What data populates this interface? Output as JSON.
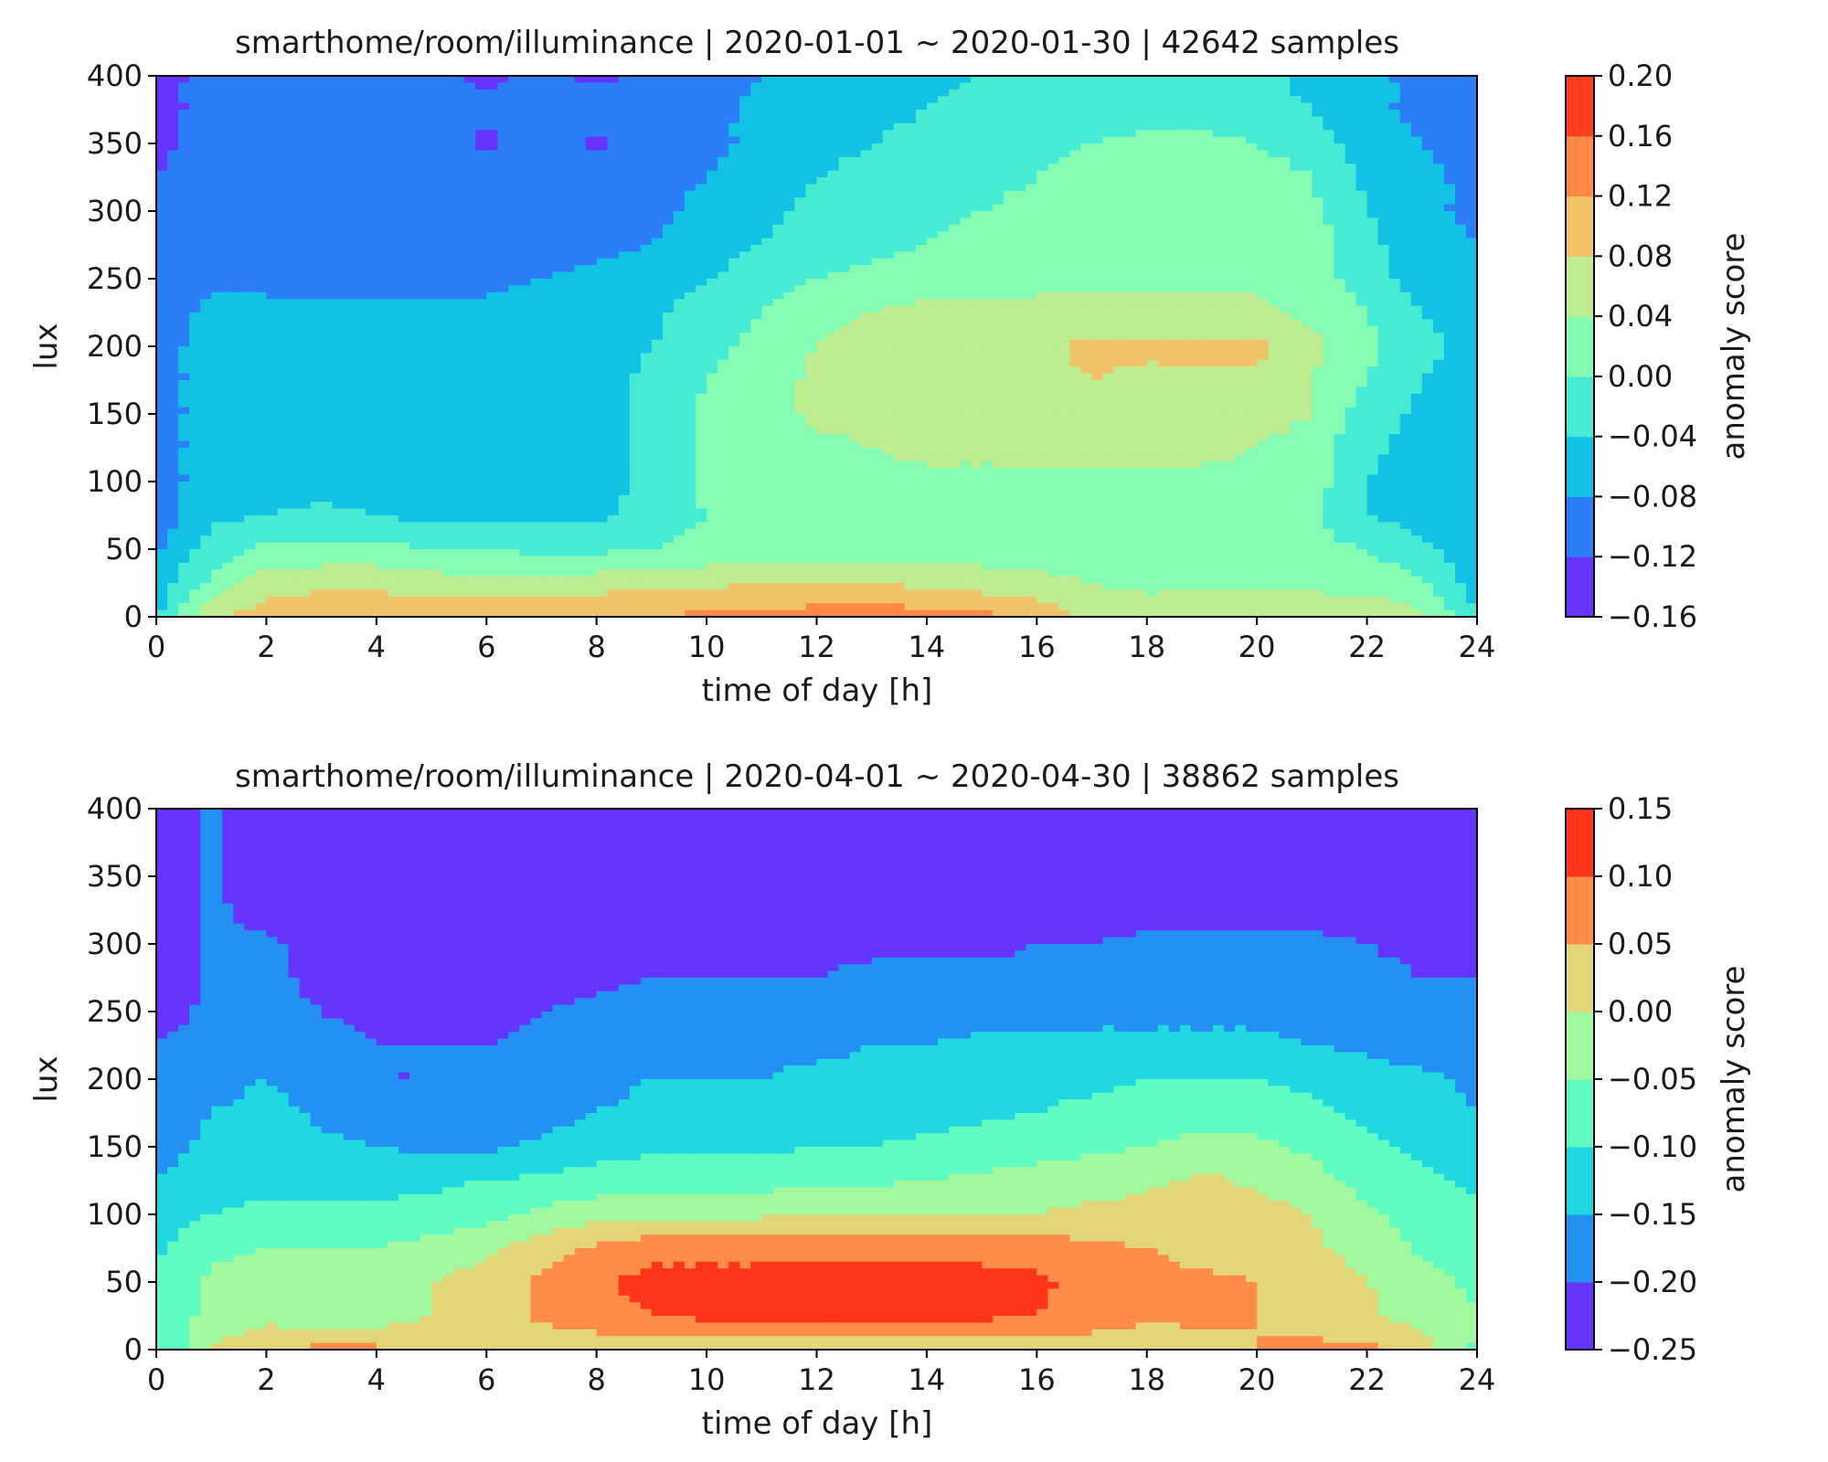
{
  "chart_data": [
    {
      "type": "heatmap",
      "subtype": "filled-contour",
      "title": "smarthome/room/illuminance | 2020-01-01 ~ 2020-01-30 | 42642 samples",
      "xlabel": "time of day [h]",
      "ylabel": "lux",
      "xlim": [
        0,
        24
      ],
      "ylim": [
        0,
        400
      ],
      "x_ticks": [
        0,
        2,
        4,
        6,
        8,
        10,
        12,
        14,
        16,
        18,
        20,
        22,
        24
      ],
      "y_ticks": [
        0,
        50,
        100,
        150,
        200,
        250,
        300,
        350,
        400
      ],
      "colorbar": {
        "label": "anomaly score",
        "levels": [
          -0.16,
          -0.12,
          -0.08,
          -0.04,
          0.0,
          0.04,
          0.08,
          0.12,
          0.16,
          0.2
        ],
        "tick_labels": [
          "−0.16",
          "−0.12",
          "−0.08",
          "−0.04",
          "0.00",
          "0.04",
          "0.08",
          "0.12",
          "0.16",
          "0.20"
        ],
        "colors": [
          "#6534fe",
          "#2c7ef7",
          "#12c2e5",
          "#47ebd3",
          "#84fcb4",
          "#bfeb91",
          "#f2c46a",
          "#ff8947",
          "#ff3d1f"
        ]
      },
      "grid": false,
      "x": [
        0,
        1,
        2,
        3,
        4,
        5,
        6,
        7,
        8,
        9,
        10,
        11,
        12,
        13,
        14,
        15,
        16,
        17,
        18,
        19,
        20,
        21,
        22,
        23,
        24
      ],
      "y": [
        0,
        25,
        50,
        75,
        100,
        125,
        150,
        175,
        200,
        225,
        250,
        275,
        300,
        325,
        350,
        375,
        400
      ],
      "z": [
        [
          -0.05,
          0.08,
          0.1,
          0.11,
          0.11,
          0.11,
          0.12,
          0.12,
          0.12,
          0.12,
          0.13,
          0.13,
          0.14,
          0.14,
          0.14,
          0.13,
          0.11,
          0.07,
          0.06,
          0.08,
          0.08,
          0.07,
          0.07,
          0.05,
          -0.04
        ],
        [
          -0.06,
          0.01,
          0.06,
          0.07,
          0.07,
          0.06,
          0.05,
          0.05,
          0.06,
          0.07,
          0.07,
          0.08,
          0.08,
          0.08,
          0.07,
          0.06,
          0.05,
          0.04,
          0.03,
          0.03,
          0.03,
          0.03,
          0.02,
          0.01,
          -0.06
        ],
        [
          -0.09,
          -0.02,
          0.01,
          0.01,
          0.01,
          0.0,
          0.0,
          -0.01,
          -0.01,
          0.0,
          0.01,
          0.01,
          0.02,
          0.02,
          0.02,
          0.02,
          0.02,
          0.02,
          0.02,
          0.02,
          0.02,
          0.01,
          0.0,
          -0.03,
          -0.07
        ],
        [
          -0.1,
          -0.05,
          -0.04,
          -0.03,
          -0.04,
          -0.05,
          -0.05,
          -0.05,
          -0.05,
          -0.02,
          0.0,
          0.01,
          0.02,
          0.02,
          0.02,
          0.02,
          0.02,
          0.02,
          0.02,
          0.02,
          0.02,
          0.01,
          -0.04,
          -0.06,
          -0.07
        ],
        [
          -0.1,
          -0.06,
          -0.06,
          -0.06,
          -0.06,
          -0.06,
          -0.06,
          -0.06,
          -0.06,
          -0.03,
          0.01,
          0.02,
          0.03,
          0.03,
          0.03,
          0.03,
          0.03,
          0.03,
          0.03,
          0.03,
          0.03,
          0.02,
          -0.04,
          -0.06,
          -0.07
        ],
        [
          -0.1,
          -0.06,
          -0.06,
          -0.06,
          -0.06,
          -0.06,
          -0.06,
          -0.06,
          -0.06,
          -0.03,
          0.01,
          0.02,
          0.03,
          0.04,
          0.05,
          0.05,
          0.05,
          0.05,
          0.05,
          0.05,
          0.04,
          0.02,
          -0.03,
          -0.06,
          -0.07
        ],
        [
          -0.1,
          -0.06,
          -0.06,
          -0.06,
          -0.06,
          -0.06,
          -0.06,
          -0.06,
          -0.06,
          -0.03,
          0.01,
          0.02,
          0.05,
          0.05,
          0.06,
          0.06,
          0.06,
          0.06,
          0.06,
          0.06,
          0.06,
          0.04,
          -0.02,
          -0.05,
          -0.07
        ],
        [
          -0.1,
          -0.06,
          -0.06,
          -0.06,
          -0.06,
          -0.06,
          -0.06,
          -0.06,
          -0.06,
          -0.03,
          0.0,
          0.02,
          0.05,
          0.06,
          0.07,
          0.07,
          0.07,
          0.08,
          0.07,
          0.07,
          0.07,
          0.04,
          0.0,
          -0.04,
          -0.06
        ],
        [
          -0.1,
          -0.06,
          -0.06,
          -0.06,
          -0.06,
          -0.06,
          -0.06,
          -0.06,
          -0.06,
          -0.04,
          -0.01,
          0.01,
          0.04,
          0.06,
          0.07,
          0.07,
          0.07,
          0.09,
          0.09,
          0.09,
          0.09,
          0.05,
          0.01,
          -0.03,
          -0.05
        ],
        [
          -0.1,
          -0.07,
          -0.07,
          -0.07,
          -0.07,
          -0.07,
          -0.07,
          -0.06,
          -0.06,
          -0.05,
          -0.02,
          0.0,
          0.03,
          0.04,
          0.05,
          0.05,
          0.05,
          0.05,
          0.05,
          0.05,
          0.05,
          0.03,
          0.0,
          -0.04,
          -0.06
        ],
        [
          -0.11,
          -0.09,
          -0.09,
          -0.1,
          -0.1,
          -0.1,
          -0.09,
          -0.08,
          -0.07,
          -0.06,
          -0.04,
          -0.02,
          0.0,
          0.01,
          0.02,
          0.02,
          0.03,
          0.03,
          0.03,
          0.03,
          0.03,
          0.02,
          -0.02,
          -0.06,
          -0.08
        ],
        [
          -0.12,
          -0.1,
          -0.1,
          -0.1,
          -0.1,
          -0.1,
          -0.1,
          -0.1,
          -0.09,
          -0.08,
          -0.06,
          -0.04,
          -0.02,
          -0.01,
          0.0,
          0.01,
          0.02,
          0.02,
          0.03,
          0.03,
          0.03,
          0.02,
          -0.03,
          -0.06,
          -0.08
        ],
        [
          -0.12,
          -0.1,
          -0.1,
          -0.1,
          -0.1,
          -0.1,
          -0.1,
          -0.1,
          -0.1,
          -0.09,
          -0.07,
          -0.05,
          -0.03,
          -0.02,
          -0.01,
          0.0,
          0.01,
          0.02,
          0.03,
          0.03,
          0.02,
          0.01,
          -0.04,
          -0.07,
          -0.09
        ],
        [
          -0.12,
          -0.1,
          -0.1,
          -0.1,
          -0.1,
          -0.1,
          -0.1,
          -0.1,
          -0.1,
          -0.09,
          -0.08,
          -0.06,
          -0.04,
          -0.03,
          -0.02,
          -0.01,
          0.0,
          0.02,
          0.03,
          0.03,
          0.02,
          0.0,
          -0.05,
          -0.07,
          -0.09
        ],
        [
          -0.13,
          -0.1,
          -0.1,
          -0.1,
          -0.1,
          -0.1,
          -0.13,
          -0.1,
          -0.13,
          -0.1,
          -0.09,
          -0.07,
          -0.05,
          -0.04,
          -0.03,
          -0.02,
          -0.01,
          0.0,
          0.01,
          0.01,
          0.0,
          -0.02,
          -0.06,
          -0.08,
          -0.1
        ],
        [
          -0.13,
          -0.11,
          -0.11,
          -0.11,
          -0.11,
          -0.11,
          -0.11,
          -0.1,
          -0.1,
          -0.1,
          -0.09,
          -0.07,
          -0.06,
          -0.05,
          -0.04,
          -0.03,
          -0.03,
          -0.02,
          -0.02,
          -0.02,
          -0.03,
          -0.04,
          -0.07,
          -0.09,
          -0.1
        ],
        [
          -0.13,
          -0.11,
          -0.11,
          -0.11,
          -0.11,
          -0.11,
          -0.13,
          -0.11,
          -0.13,
          -0.11,
          -0.1,
          -0.08,
          -0.07,
          -0.06,
          -0.05,
          -0.04,
          -0.03,
          -0.03,
          -0.03,
          -0.03,
          -0.03,
          -0.05,
          -0.07,
          -0.09,
          -0.1
        ]
      ]
    },
    {
      "type": "heatmap",
      "subtype": "filled-contour",
      "title": "smarthome/room/illuminance | 2020-04-01 ~ 2020-04-30 | 38862 samples",
      "xlabel": "time of day [h]",
      "ylabel": "lux",
      "xlim": [
        0,
        24
      ],
      "ylim": [
        0,
        400
      ],
      "x_ticks": [
        0,
        2,
        4,
        6,
        8,
        10,
        12,
        14,
        16,
        18,
        20,
        22,
        24
      ],
      "y_ticks": [
        0,
        50,
        100,
        150,
        200,
        250,
        300,
        350,
        400
      ],
      "colorbar": {
        "label": "anomaly score",
        "levels": [
          -0.25,
          -0.2,
          -0.15,
          -0.1,
          -0.05,
          0.0,
          0.05,
          0.1,
          0.15
        ],
        "tick_labels": [
          "−0.25",
          "−0.20",
          "−0.15",
          "−0.10",
          "−0.05",
          "0.00",
          "0.05",
          "0.10",
          "0.15"
        ],
        "colors": [
          "#6534fe",
          "#2490f2",
          "#20d8e0",
          "#60fcc2",
          "#a2f89e",
          "#e2d678",
          "#ff8c47",
          "#ff341b"
        ]
      },
      "grid": false,
      "x": [
        0,
        1,
        2,
        3,
        4,
        5,
        6,
        7,
        8,
        9,
        10,
        11,
        12,
        13,
        14,
        15,
        16,
        17,
        18,
        19,
        20,
        21,
        22,
        23,
        24
      ],
      "y": [
        0,
        25,
        50,
        75,
        100,
        125,
        150,
        175,
        200,
        225,
        250,
        275,
        300,
        325,
        350,
        375,
        400
      ],
      "z": [
        [
          -0.1,
          0.0,
          0.05,
          0.06,
          0.06,
          0.04,
          0.03,
          0.02,
          0.02,
          0.02,
          0.02,
          0.02,
          0.02,
          0.02,
          0.02,
          0.02,
          0.02,
          0.02,
          0.02,
          0.03,
          0.05,
          0.06,
          0.06,
          0.03,
          -0.06
        ],
        [
          -0.08,
          -0.04,
          -0.02,
          -0.03,
          -0.03,
          0.0,
          0.02,
          0.06,
          0.08,
          0.1,
          0.11,
          0.11,
          0.11,
          0.11,
          0.11,
          0.11,
          0.1,
          0.08,
          0.06,
          0.06,
          0.05,
          0.03,
          0.01,
          -0.02,
          -0.05
        ],
        [
          -0.09,
          -0.04,
          -0.03,
          -0.03,
          -0.03,
          0.0,
          0.02,
          0.06,
          0.09,
          0.12,
          0.12,
          0.12,
          0.12,
          0.12,
          0.12,
          0.12,
          0.11,
          0.08,
          0.07,
          0.06,
          0.05,
          0.03,
          0.0,
          -0.03,
          -0.06
        ],
        [
          -0.11,
          -0.06,
          -0.05,
          -0.05,
          -0.05,
          -0.03,
          -0.01,
          0.03,
          0.06,
          0.08,
          0.08,
          0.08,
          0.09,
          0.09,
          0.09,
          0.08,
          0.08,
          0.06,
          0.05,
          0.03,
          0.03,
          0.01,
          -0.02,
          -0.06,
          -0.08
        ],
        [
          -0.13,
          -0.1,
          -0.09,
          -0.09,
          -0.09,
          -0.08,
          -0.07,
          -0.04,
          -0.02,
          -0.01,
          -0.01,
          -0.01,
          0.0,
          0.0,
          0.0,
          0.0,
          0.0,
          0.01,
          0.02,
          0.03,
          0.02,
          0.0,
          -0.04,
          -0.07,
          -0.09
        ],
        [
          -0.15,
          -0.12,
          -0.11,
          -0.12,
          -0.12,
          -0.11,
          -0.1,
          -0.09,
          -0.08,
          -0.07,
          -0.07,
          -0.07,
          -0.06,
          -0.06,
          -0.05,
          -0.04,
          -0.03,
          -0.02,
          -0.01,
          0.01,
          -0.01,
          -0.03,
          -0.07,
          -0.09,
          -0.11
        ],
        [
          -0.17,
          -0.14,
          -0.13,
          -0.14,
          -0.15,
          -0.16,
          -0.16,
          -0.14,
          -0.12,
          -0.11,
          -0.11,
          -0.11,
          -0.1,
          -0.1,
          -0.09,
          -0.08,
          -0.07,
          -0.06,
          -0.05,
          -0.03,
          -0.04,
          -0.06,
          -0.09,
          -0.11,
          -0.13
        ],
        [
          -0.18,
          -0.15,
          -0.13,
          -0.16,
          -0.18,
          -0.19,
          -0.19,
          -0.17,
          -0.15,
          -0.14,
          -0.14,
          -0.14,
          -0.13,
          -0.13,
          -0.12,
          -0.11,
          -0.1,
          -0.09,
          -0.08,
          -0.07,
          -0.07,
          -0.09,
          -0.11,
          -0.13,
          -0.15
        ],
        [
          -0.19,
          -0.17,
          -0.15,
          -0.18,
          -0.2,
          -0.2,
          -0.19,
          -0.18,
          -0.16,
          -0.15,
          -0.15,
          -0.15,
          -0.14,
          -0.14,
          -0.13,
          -0.12,
          -0.11,
          -0.11,
          -0.1,
          -0.1,
          -0.1,
          -0.11,
          -0.13,
          -0.14,
          -0.16
        ],
        [
          -0.2,
          -0.18,
          -0.18,
          -0.19,
          -0.2,
          -0.2,
          -0.2,
          -0.19,
          -0.18,
          -0.17,
          -0.17,
          -0.16,
          -0.16,
          -0.15,
          -0.15,
          -0.14,
          -0.14,
          -0.14,
          -0.14,
          -0.14,
          -0.14,
          -0.15,
          -0.16,
          -0.17,
          -0.18
        ],
        [
          -0.22,
          -0.19,
          -0.19,
          -0.2,
          -0.21,
          -0.22,
          -0.22,
          -0.2,
          -0.19,
          -0.18,
          -0.18,
          -0.18,
          -0.18,
          -0.17,
          -0.17,
          -0.17,
          -0.17,
          -0.16,
          -0.16,
          -0.16,
          -0.16,
          -0.17,
          -0.18,
          -0.19,
          -0.19
        ],
        [
          -0.24,
          -0.19,
          -0.19,
          -0.21,
          -0.22,
          -0.23,
          -0.23,
          -0.22,
          -0.21,
          -0.2,
          -0.2,
          -0.2,
          -0.2,
          -0.19,
          -0.19,
          -0.19,
          -0.19,
          -0.18,
          -0.18,
          -0.18,
          -0.18,
          -0.18,
          -0.19,
          -0.2,
          -0.2
        ],
        [
          -0.24,
          -0.19,
          -0.19,
          -0.22,
          -0.23,
          -0.24,
          -0.24,
          -0.23,
          -0.22,
          -0.22,
          -0.21,
          -0.21,
          -0.21,
          -0.21,
          -0.21,
          -0.21,
          -0.2,
          -0.2,
          -0.19,
          -0.19,
          -0.19,
          -0.19,
          -0.2,
          -0.21,
          -0.21
        ],
        [
          -0.24,
          -0.19,
          -0.22,
          -0.23,
          -0.24,
          -0.24,
          -0.24,
          -0.24,
          -0.24,
          -0.23,
          -0.23,
          -0.23,
          -0.23,
          -0.23,
          -0.23,
          -0.22,
          -0.22,
          -0.22,
          -0.22,
          -0.22,
          -0.22,
          -0.22,
          -0.22,
          -0.23,
          -0.23
        ],
        [
          -0.24,
          -0.19,
          -0.24,
          -0.24,
          -0.24,
          -0.24,
          -0.24,
          -0.24,
          -0.24,
          -0.24,
          -0.24,
          -0.24,
          -0.24,
          -0.24,
          -0.24,
          -0.24,
          -0.24,
          -0.24,
          -0.24,
          -0.24,
          -0.24,
          -0.24,
          -0.24,
          -0.24,
          -0.24
        ],
        [
          -0.24,
          -0.19,
          -0.24,
          -0.24,
          -0.24,
          -0.24,
          -0.24,
          -0.24,
          -0.24,
          -0.24,
          -0.24,
          -0.24,
          -0.24,
          -0.24,
          -0.24,
          -0.24,
          -0.24,
          -0.24,
          -0.24,
          -0.24,
          -0.24,
          -0.24,
          -0.24,
          -0.24,
          -0.24
        ],
        [
          -0.24,
          -0.19,
          -0.24,
          -0.24,
          -0.24,
          -0.24,
          -0.24,
          -0.24,
          -0.24,
          -0.24,
          -0.24,
          -0.24,
          -0.24,
          -0.24,
          -0.24,
          -0.24,
          -0.24,
          -0.24,
          -0.24,
          -0.24,
          -0.24,
          -0.24,
          -0.24,
          -0.24,
          -0.24
        ]
      ]
    }
  ]
}
